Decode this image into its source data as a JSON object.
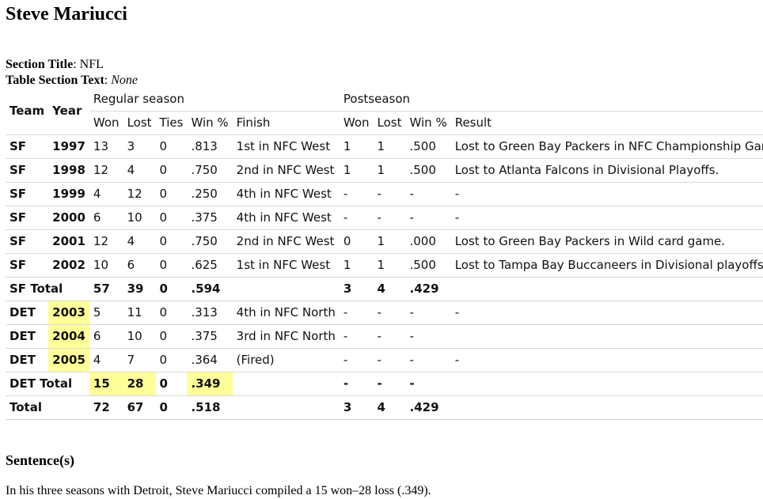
{
  "page_title": "Steve Mariucci",
  "section_title_label": "Section Title",
  "section_title_value": "NFL",
  "table_section_text_label": "Table Section Text",
  "table_section_text_value": "None",
  "table": {
    "header_team": "Team",
    "header_year": "Year",
    "header_regular": "Regular season",
    "header_post": "Postseason",
    "sub_headers": [
      "Won",
      "Lost",
      "Ties",
      "Win %",
      "Finish",
      "Won",
      "Lost",
      "Win %",
      "Result"
    ],
    "rows": [
      {
        "team": "SF",
        "year": "1997",
        "won": "13",
        "lost": "3",
        "ties": "0",
        "pct": ".813",
        "finish": "1st in NFC West",
        "pwon": "1",
        "plost": "1",
        "ppct": ".500",
        "result": "Lost to Green Bay Packers in NFC Championship Game."
      },
      {
        "team": "SF",
        "year": "1998",
        "won": "12",
        "lost": "4",
        "ties": "0",
        "pct": ".750",
        "finish": "2nd in NFC West",
        "pwon": "1",
        "plost": "1",
        "ppct": ".500",
        "result": "Lost to Atlanta Falcons in Divisional Playoffs."
      },
      {
        "team": "SF",
        "year": "1999",
        "won": "4",
        "lost": "12",
        "ties": "0",
        "pct": ".250",
        "finish": "4th in NFC West",
        "pwon": "-",
        "plost": "-",
        "ppct": "-",
        "result": "-"
      },
      {
        "team": "SF",
        "year": "2000",
        "won": "6",
        "lost": "10",
        "ties": "0",
        "pct": ".375",
        "finish": "4th in NFC West",
        "pwon": "-",
        "plost": "-",
        "ppct": "-",
        "result": "-"
      },
      {
        "team": "SF",
        "year": "2001",
        "won": "12",
        "lost": "4",
        "ties": "0",
        "pct": ".750",
        "finish": "2nd in NFC West",
        "pwon": "0",
        "plost": "1",
        "ppct": ".000",
        "result": "Lost to Green Bay Packers in Wild card game."
      },
      {
        "team": "SF",
        "year": "2002",
        "won": "10",
        "lost": "6",
        "ties": "0",
        "pct": ".625",
        "finish": "1st in NFC West",
        "pwon": "1",
        "plost": "1",
        "ppct": ".500",
        "result": "Lost to Tampa Bay Buccaneers in Divisional playoffs."
      }
    ],
    "sf_total": {
      "label": "SF Total",
      "won": "57",
      "lost": "39",
      "ties": "0",
      "pct": ".594",
      "pwon": "3",
      "plost": "4",
      "ppct": ".429"
    },
    "det_rows": [
      {
        "team": "DET",
        "year": "2003",
        "won": "5",
        "lost": "11",
        "ties": "0",
        "pct": ".313",
        "finish": "4th in NFC North",
        "pwon": "-",
        "plost": "-",
        "ppct": "-",
        "result": "-"
      },
      {
        "team": "DET",
        "year": "2004",
        "won": "6",
        "lost": "10",
        "ties": "0",
        "pct": ".375",
        "finish": "3rd in NFC North",
        "pwon": "-",
        "plost": "-",
        "ppct": "-",
        "result": ""
      },
      {
        "team": "DET",
        "year": "2005",
        "won": "4",
        "lost": "7",
        "ties": "0",
        "pct": ".364",
        "finish": "(Fired)",
        "pwon": "-",
        "plost": "-",
        "ppct": "-",
        "result": "-"
      }
    ],
    "det_total": {
      "label": "DET Total",
      "won": "15",
      "lost": "28",
      "ties": "0",
      "pct": ".349",
      "pwon": "-",
      "plost": "-",
      "ppct": "-"
    },
    "total": {
      "label": "Total",
      "won": "72",
      "lost": "67",
      "ties": "0",
      "pct": ".518",
      "pwon": "3",
      "plost": "4",
      "ppct": ".429"
    }
  },
  "sentences_heading": "Sentence(s)",
  "sentence": "In his three seasons with Detroit, Steve Mariucci compiled a 15 won–28 loss (.349).",
  "highlight_color": "#ffff99"
}
